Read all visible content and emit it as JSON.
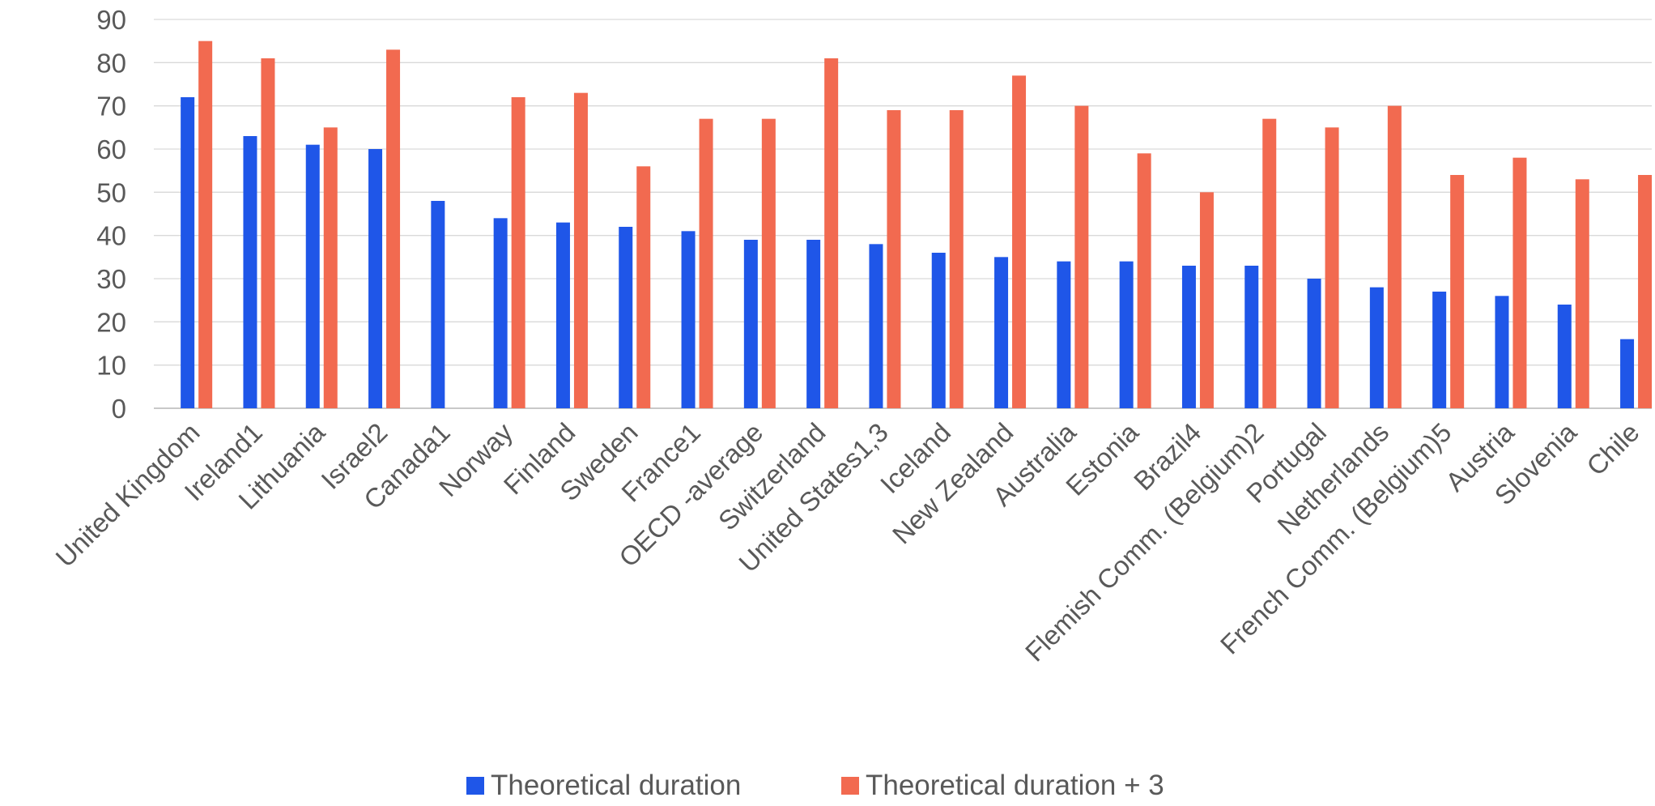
{
  "chart_data": {
    "type": "bar",
    "title": "",
    "xlabel": "",
    "ylabel": "",
    "ylim": [
      0,
      90
    ],
    "yticks": [
      0,
      10,
      20,
      30,
      40,
      50,
      60,
      70,
      80,
      90
    ],
    "grid": true,
    "legend_position": "bottom",
    "categories": [
      "United Kingdom",
      "Ireland1",
      "Lithuania",
      "Israel2",
      "Canada1",
      "Norway",
      "Finland",
      "Sweden",
      "France1",
      "OECD -average",
      "Switzerland",
      "United States1,3",
      "Iceland",
      "New Zealand",
      "Australia",
      "Estonia",
      "Brazil4",
      "Flemish Comm. (Belgium)2",
      "Portugal",
      "Netherlands",
      "French Comm. (Belgium)5",
      "Austria",
      "Slovenia",
      "Chile"
    ],
    "series": [
      {
        "name": "Theoretical duration",
        "color": "#1f56e8",
        "values": [
          72,
          63,
          61,
          60,
          48,
          44,
          43,
          42,
          41,
          39,
          39,
          38,
          36,
          35,
          34,
          34,
          33,
          33,
          30,
          28,
          27,
          26,
          24,
          16
        ]
      },
      {
        "name": "Theoretical duration + 3",
        "color": "#f26a50",
        "values": [
          85,
          81,
          65,
          83,
          null,
          72,
          73,
          56,
          67,
          67,
          81,
          69,
          69,
          77,
          70,
          59,
          50,
          67,
          65,
          70,
          54,
          58,
          53,
          54
        ]
      }
    ]
  }
}
